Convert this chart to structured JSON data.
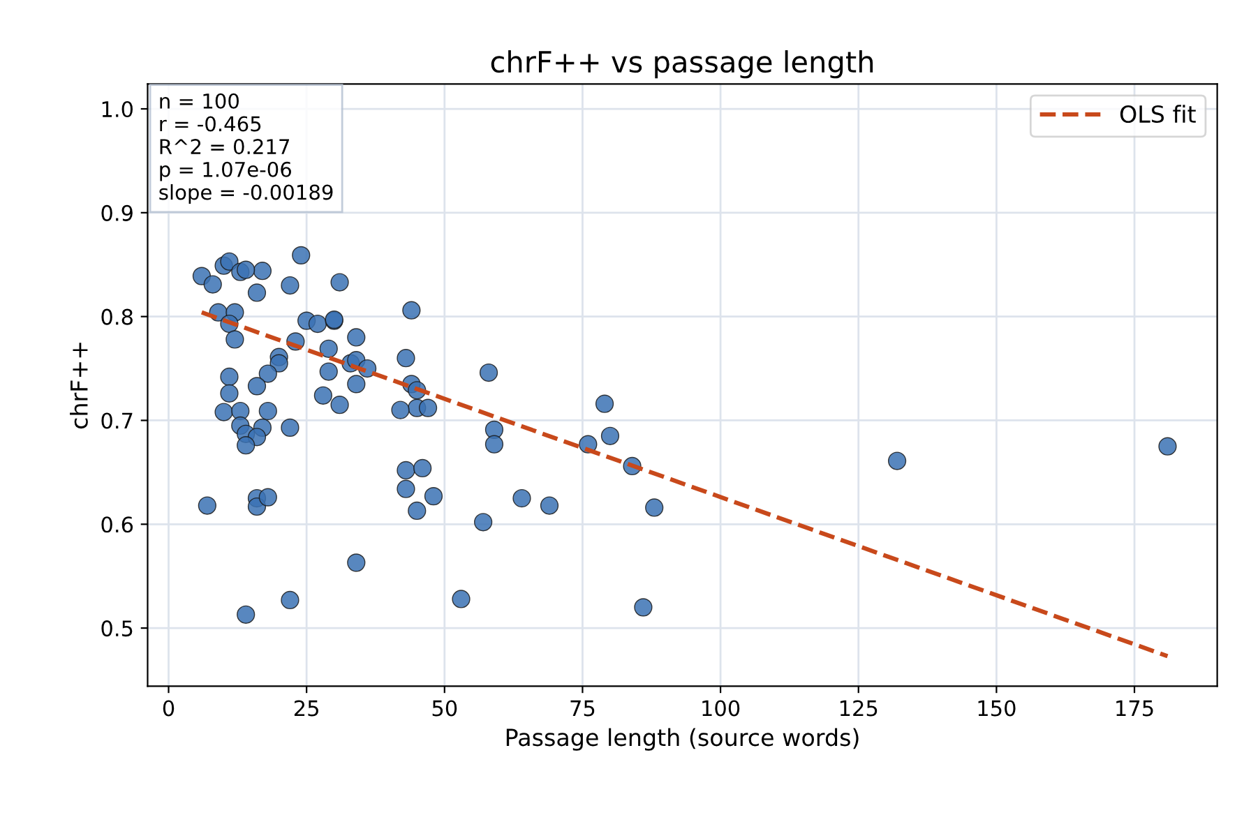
{
  "chart_data": {
    "type": "scatter",
    "title": "chrF++ vs passage length",
    "xlabel": "Passage length (source words)",
    "ylabel": "chrF++",
    "annotations": [
      "n = 100",
      "r = -0.465",
      "R^2 = 0.217",
      "p = 1.07e-06",
      "slope = -0.00189"
    ],
    "series": [
      {
        "color": "#3b72b4",
        "x": [
          6,
          8,
          10,
          11,
          13,
          17,
          16,
          14,
          24,
          22,
          31,
          9,
          12,
          11,
          12,
          20,
          20,
          23,
          25,
          27,
          30,
          30,
          34,
          33,
          34,
          36,
          34,
          29,
          29,
          44,
          43,
          44,
          45,
          45,
          47,
          42,
          58,
          11,
          18,
          16,
          11,
          10,
          13,
          18,
          13,
          17,
          14,
          16,
          14,
          22,
          31,
          28,
          43,
          46,
          43,
          45,
          48,
          57,
          59,
          59,
          64,
          69,
          76,
          79,
          80,
          84,
          88,
          86,
          132,
          181,
          7,
          16,
          16,
          18,
          14,
          22,
          34,
          53
        ],
        "values": [
          0.839,
          0.831,
          0.849,
          0.853,
          0.843,
          0.844,
          0.823,
          0.845,
          0.859,
          0.83,
          0.833,
          0.804,
          0.804,
          0.793,
          0.778,
          0.761,
          0.755,
          0.776,
          0.796,
          0.793,
          0.796,
          0.797,
          0.78,
          0.755,
          0.758,
          0.75,
          0.735,
          0.769,
          0.747,
          0.806,
          0.76,
          0.735,
          0.729,
          0.712,
          0.712,
          0.71,
          0.746,
          0.742,
          0.745,
          0.733,
          0.726,
          0.708,
          0.709,
          0.709,
          0.695,
          0.693,
          0.687,
          0.684,
          0.676,
          0.693,
          0.715,
          0.724,
          0.652,
          0.654,
          0.634,
          0.613,
          0.627,
          0.602,
          0.691,
          0.677,
          0.625,
          0.618,
          0.677,
          0.716,
          0.685,
          0.656,
          0.616,
          0.52,
          0.661,
          0.675,
          0.618,
          0.625,
          0.617,
          0.626,
          0.513,
          0.527,
          0.563,
          0.528
        ]
      },
      {
        "type": "line",
        "name": "OLS fit",
        "color": "#c8491b",
        "line_style": "dashed",
        "x": [
          6,
          181
        ],
        "values": [
          0.804,
          0.473
        ]
      }
    ],
    "xlim": [
      -3.8,
      190
    ],
    "ylim": [
      0.444,
      1.024
    ],
    "xticks": [
      0,
      25,
      50,
      75,
      100,
      125,
      150,
      175
    ],
    "yticks": [
      {
        "value": 0.5,
        "label": "0.5"
      },
      {
        "value": 0.6,
        "label": "0.6"
      },
      {
        "value": 0.7,
        "label": "0.7"
      },
      {
        "value": 0.8,
        "label": "0.8"
      },
      {
        "value": 0.9,
        "label": "0.9"
      },
      {
        "value": 1.0,
        "label": "1.0"
      }
    ],
    "grid": true,
    "legend": "top right"
  }
}
